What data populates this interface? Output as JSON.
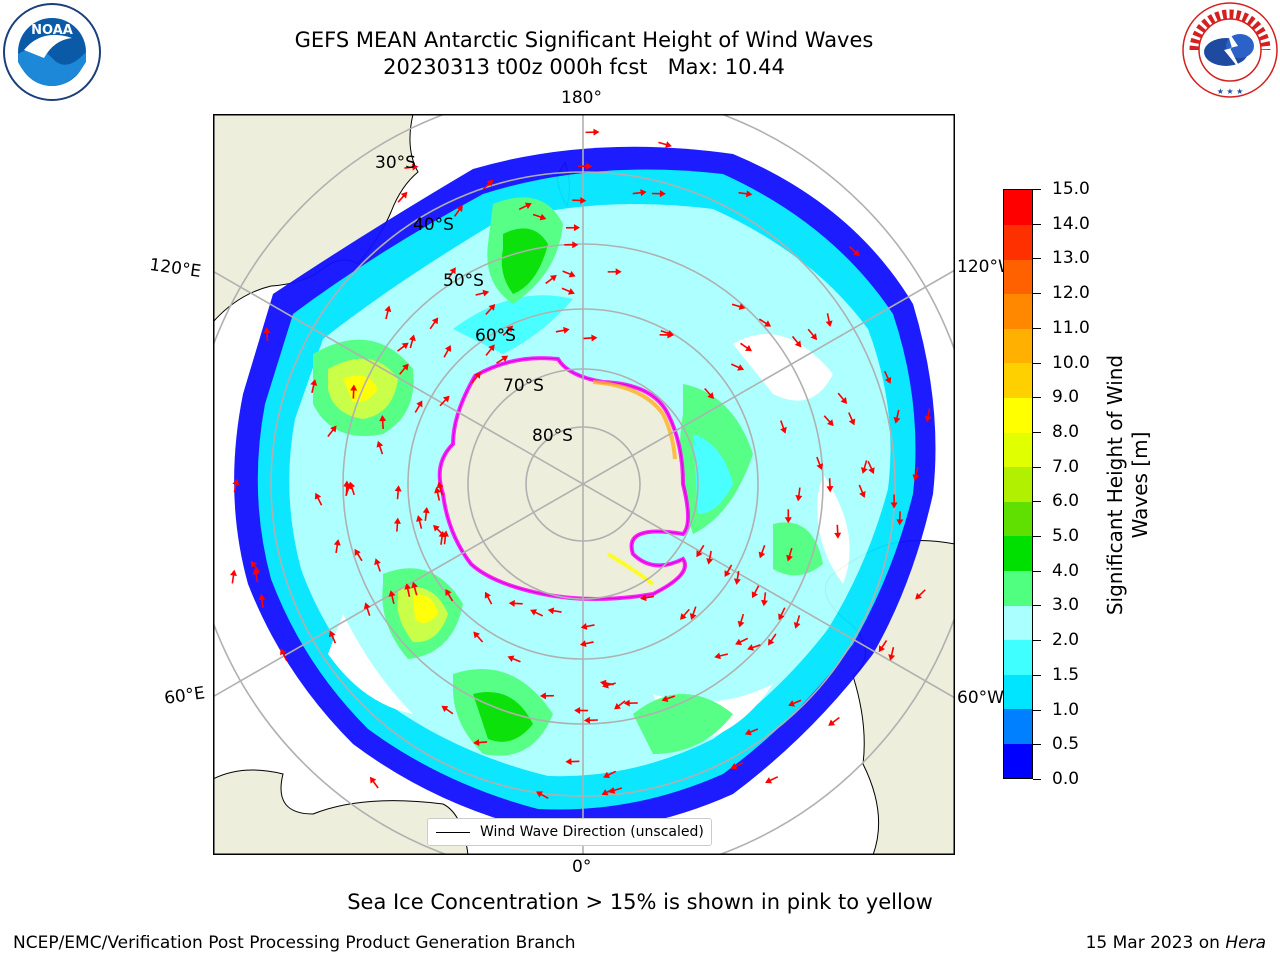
{
  "title": {
    "line1": "GEFS MEAN Antarctic Significant Height of Wind Waves",
    "line2": "20230313 t00z 000h fcst   Max: 10.44"
  },
  "logos": {
    "left": "NOAA",
    "right": "NATIONAL WEATHER SERVICE"
  },
  "map": {
    "projection": "south-polar-stereographic",
    "longitude_labels": {
      "top": "180°",
      "bottom": "0°",
      "upper_left": "120°E",
      "upper_right": "120°W",
      "lower_left": "60°E",
      "lower_right": "60°W"
    },
    "latitude_labels": [
      "30°S",
      "40°S",
      "50°S",
      "60°S",
      "70°S",
      "80°S"
    ],
    "land_color": "#eeeedc",
    "arrow_color": "#ff0000",
    "sea_ice_colors": [
      "#ff00ff",
      "#ffff00"
    ]
  },
  "colorbar": {
    "label": "Significant Height of Wind Waves [m]",
    "ticks": [
      "0.0",
      "0.5",
      "1.0",
      "1.5",
      "2.0",
      "3.0",
      "4.0",
      "5.0",
      "6.0",
      "7.0",
      "8.0",
      "9.0",
      "10.0",
      "11.0",
      "12.0",
      "13.0",
      "14.0",
      "15.0"
    ],
    "colors": [
      "#0000ff",
      "#0080ff",
      "#00e5ff",
      "#40ffff",
      "#aaffff",
      "#50ff80",
      "#00e000",
      "#60e000",
      "#b0f000",
      "#e0ff00",
      "#ffff00",
      "#ffd000",
      "#ffb000",
      "#ff8800",
      "#ff6000",
      "#ff3000",
      "#ff0000"
    ]
  },
  "legend": {
    "label": "Wind Wave Direction (unscaled)"
  },
  "subcaption": "Sea Ice Concentration > 15% is shown in pink to yellow",
  "footer": {
    "left": "NCEP/EMC/Verification Post Processing Product Generation Branch",
    "date": "15 Mar 2023 on",
    "host": "Hera"
  }
}
